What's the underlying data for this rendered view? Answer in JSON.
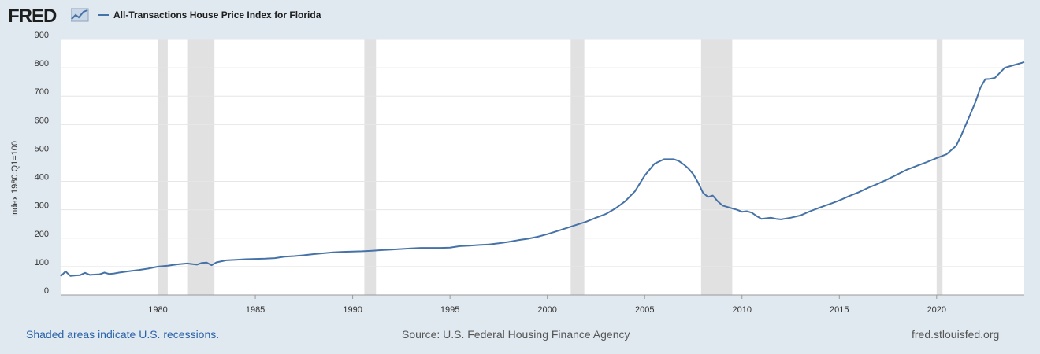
{
  "header": {
    "logo_text": "FRED",
    "legend_label": "All-Transactions House Price Index for Florida"
  },
  "footer": {
    "recession_note": "Shaded areas indicate U.S. recessions.",
    "source": "Source: U.S. Federal Housing Finance Agency",
    "site": "fred.stlouisfed.org"
  },
  "colors": {
    "background": "#e1e9f0",
    "plot_background": "#ffffff",
    "line": "#4572a7",
    "recession_shade": "#e1e1e1",
    "link": "#2a62a8"
  },
  "chart_data": {
    "type": "line",
    "title": "",
    "xlabel": "",
    "ylabel": "Index 1980:Q1=100",
    "xlim": [
      1975.0,
      2024.5
    ],
    "ylim": [
      0,
      900
    ],
    "yticks": [
      0,
      100,
      200,
      300,
      400,
      500,
      600,
      700,
      800,
      900
    ],
    "xticks": [
      1980,
      1985,
      1990,
      1995,
      2000,
      2005,
      2010,
      2015,
      2020
    ],
    "grid": true,
    "recessions": [
      [
        1980.0,
        1980.5
      ],
      [
        1981.5,
        1982.9
      ],
      [
        1990.6,
        1991.2
      ],
      [
        2001.2,
        2001.9
      ],
      [
        2007.9,
        2009.5
      ],
      [
        2020.0,
        2020.3
      ]
    ],
    "series": [
      {
        "name": "All-Transactions House Price Index for Florida",
        "x": [
          1975.0,
          1975.25,
          1975.5,
          1975.75,
          1976.0,
          1976.25,
          1976.5,
          1976.75,
          1977.0,
          1977.25,
          1977.5,
          1977.75,
          1978.0,
          1978.5,
          1979.0,
          1979.5,
          1980.0,
          1980.5,
          1981.0,
          1981.5,
          1982.0,
          1982.25,
          1982.5,
          1982.75,
          1983.0,
          1983.5,
          1984.0,
          1984.5,
          1985.0,
          1985.5,
          1986.0,
          1986.5,
          1987.0,
          1987.5,
          1988.0,
          1988.5,
          1989.0,
          1989.5,
          1990.0,
          1990.5,
          1991.0,
          1991.5,
          1992.0,
          1992.5,
          1993.0,
          1993.5,
          1994.0,
          1994.5,
          1995.0,
          1995.5,
          1996.0,
          1996.5,
          1997.0,
          1997.5,
          1998.0,
          1998.5,
          1999.0,
          1999.5,
          2000.0,
          2000.5,
          2001.0,
          2001.5,
          2002.0,
          2002.5,
          2003.0,
          2003.5,
          2004.0,
          2004.5,
          2005.0,
          2005.5,
          2006.0,
          2006.5,
          2006.75,
          2007.0,
          2007.25,
          2007.5,
          2007.75,
          2008.0,
          2008.25,
          2008.5,
          2008.75,
          2009.0,
          2009.25,
          2009.5,
          2009.75,
          2010.0,
          2010.25,
          2010.5,
          2010.75,
          2011.0,
          2011.25,
          2011.5,
          2011.75,
          2012.0,
          2012.5,
          2013.0,
          2013.5,
          2014.0,
          2014.5,
          2015.0,
          2015.5,
          2016.0,
          2016.5,
          2017.0,
          2017.5,
          2018.0,
          2018.5,
          2019.0,
          2019.5,
          2020.0,
          2020.5,
          2021.0,
          2021.25,
          2021.5,
          2021.75,
          2022.0,
          2022.25,
          2022.5,
          2022.75,
          2023.0,
          2023.5,
          2024.0,
          2024.5
        ],
        "values": [
          66,
          83,
          67,
          69,
          70,
          78,
          71,
          72,
          73,
          79,
          74,
          76,
          79,
          84,
          88,
          93,
          100,
          103,
          108,
          111,
          107,
          113,
          114,
          105,
          115,
          122,
          124,
          126,
          127,
          128,
          130,
          135,
          137,
          140,
          144,
          147,
          150,
          152,
          153,
          154,
          156,
          158,
          160,
          162,
          164,
          166,
          166,
          166,
          167,
          172,
          174,
          176,
          178,
          182,
          187,
          193,
          198,
          205,
          214,
          225,
          236,
          247,
          258,
          272,
          285,
          305,
          330,
          365,
          420,
          462,
          478,
          478,
          472,
          460,
          445,
          425,
          395,
          360,
          345,
          350,
          330,
          315,
          310,
          305,
          300,
          293,
          295,
          290,
          278,
          268,
          270,
          272,
          268,
          266,
          272,
          280,
          295,
          308,
          320,
          333,
          348,
          362,
          378,
          392,
          408,
          425,
          442,
          455,
          468,
          482,
          495,
          525,
          560,
          600,
          640,
          680,
          730,
          760,
          761,
          765,
          800,
          810,
          820
        ]
      }
    ]
  }
}
